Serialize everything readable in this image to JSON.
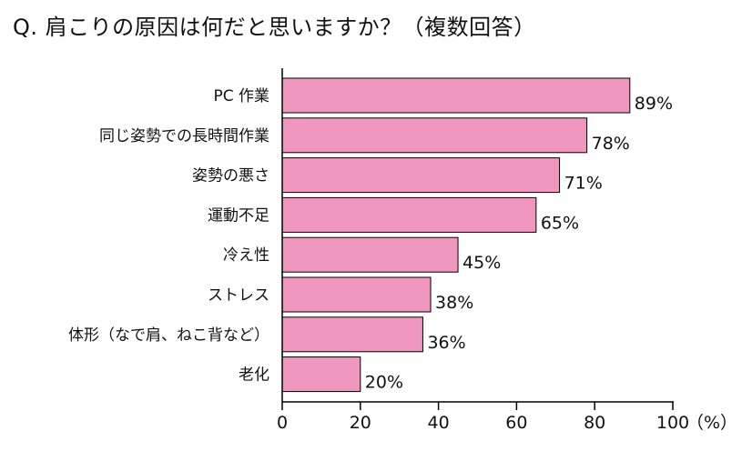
{
  "question": "Q. 肩こりの原因は何だと思いますか？（複数回答）",
  "chart_data": {
    "type": "bar",
    "orientation": "horizontal",
    "title": "Q. 肩こりの原因は何だと思いますか？（複数回答）",
    "categories": [
      "PC 作業",
      "同じ姿勢での長時間作業",
      "姿勢の悪さ",
      "運動不足",
      "冷え性",
      "ストレス",
      "体形（なで肩、ねこ背など）",
      "老化"
    ],
    "values": [
      89,
      78,
      71,
      65,
      45,
      38,
      36,
      20
    ],
    "value_labels": [
      "89%",
      "78%",
      "71%",
      "65%",
      "45%",
      "38%",
      "36%",
      "20%"
    ],
    "xlim": [
      0,
      100
    ],
    "xticks": [
      0,
      20,
      40,
      60,
      80,
      100
    ],
    "xlabel": "（%）",
    "bar_color": "#f097c0",
    "grid": false,
    "legend": "none"
  }
}
